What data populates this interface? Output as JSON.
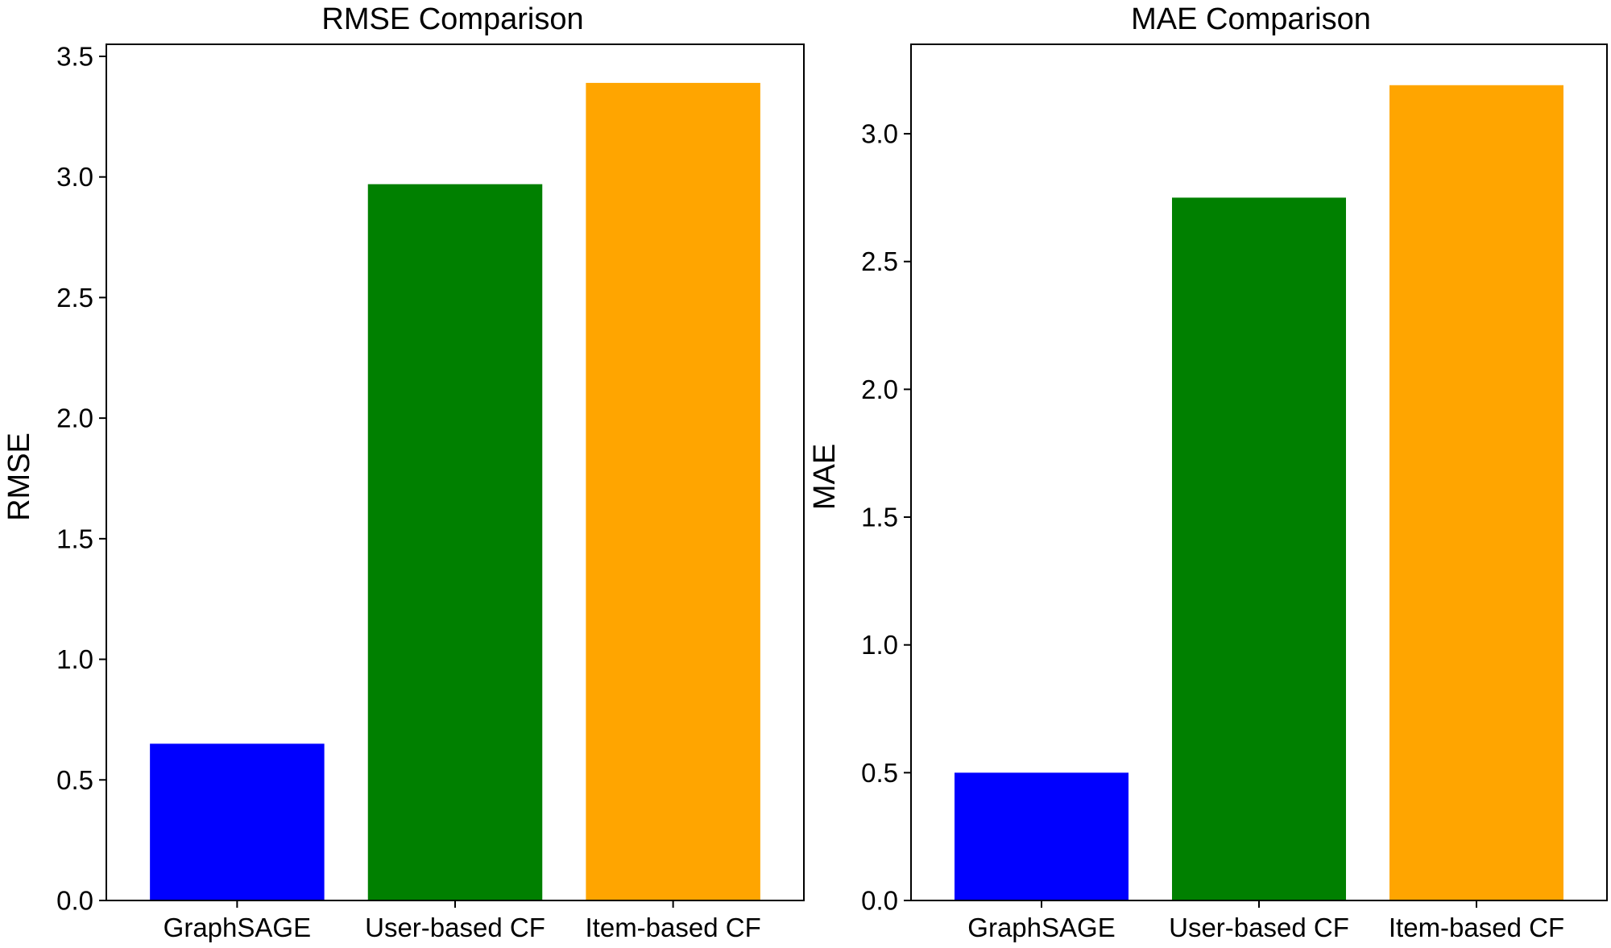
{
  "chart_data": [
    {
      "type": "bar",
      "title": "RMSE Comparison",
      "xlabel": "",
      "ylabel": "RMSE",
      "categories": [
        "GraphSAGE",
        "User-based CF",
        "Item-based CF"
      ],
      "values": [
        0.65,
        2.97,
        3.39
      ],
      "colors": [
        "#0000ff",
        "#008000",
        "#ffa500"
      ],
      "ylim": [
        0,
        3.55
      ],
      "yticks": [
        0.0,
        0.5,
        1.0,
        1.5,
        2.0,
        2.5,
        3.0,
        3.5
      ],
      "ytick_labels": [
        "0.0",
        "0.5",
        "1.0",
        "1.5",
        "2.0",
        "2.5",
        "3.0",
        "3.5"
      ],
      "grid": false,
      "legend": "none"
    },
    {
      "type": "bar",
      "title": "MAE Comparison",
      "xlabel": "",
      "ylabel": "MAE",
      "categories": [
        "GraphSAGE",
        "User-based CF",
        "Item-based CF"
      ],
      "values": [
        0.5,
        2.75,
        3.19
      ],
      "colors": [
        "#0000ff",
        "#008000",
        "#ffa500"
      ],
      "ylim": [
        0,
        3.35
      ],
      "yticks": [
        0.0,
        0.5,
        1.0,
        1.5,
        2.0,
        2.5,
        3.0
      ],
      "ytick_labels": [
        "0.0",
        "0.5",
        "1.0",
        "1.5",
        "2.0",
        "2.5",
        "3.0"
      ],
      "grid": false,
      "legend": "none"
    }
  ]
}
